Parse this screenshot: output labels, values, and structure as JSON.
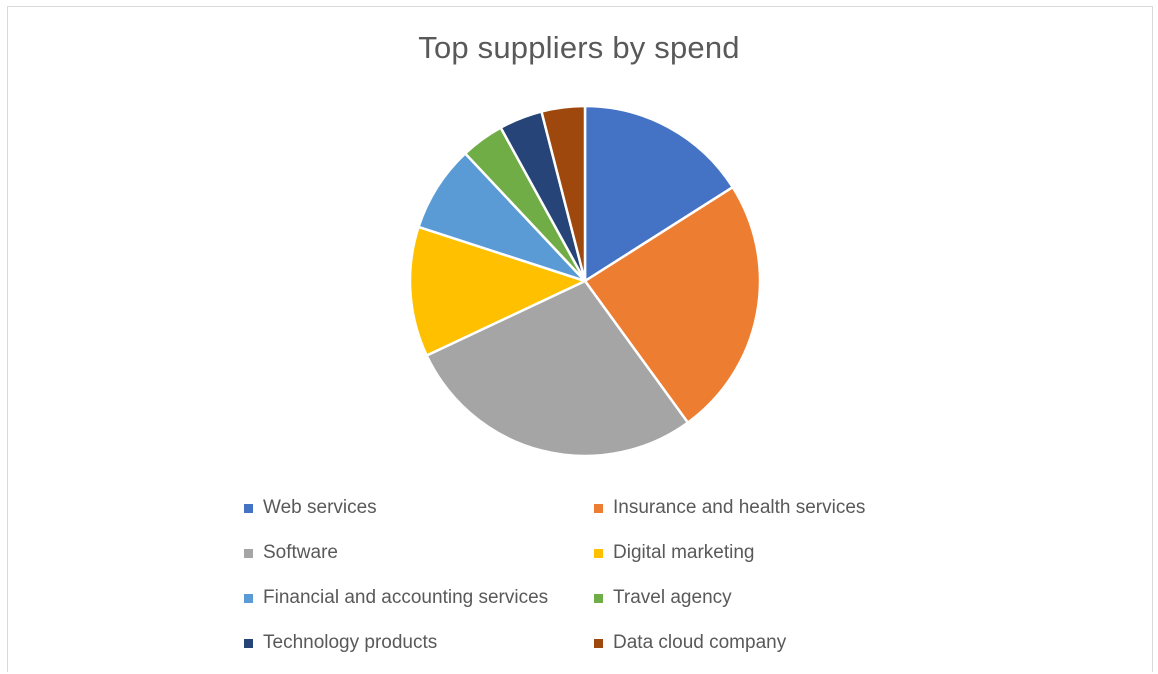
{
  "chart_data": {
    "type": "pie",
    "title": "Top suppliers by spend",
    "categories": [
      "Web services",
      "Insurance and health services",
      "Software",
      "Digital marketing",
      "Financial and accounting services",
      "Travel agency",
      "Technology products",
      "Data cloud company"
    ],
    "values": [
      16,
      24,
      28,
      12,
      8,
      4,
      4,
      4
    ],
    "colors": [
      "#4472C4",
      "#ED7D31",
      "#A5A5A5",
      "#FFC000",
      "#5B9BD5",
      "#70AD47",
      "#264478",
      "#9E480E"
    ],
    "legend_position": "bottom",
    "start_angle": "12 o'clock",
    "direction": "clockwise"
  }
}
